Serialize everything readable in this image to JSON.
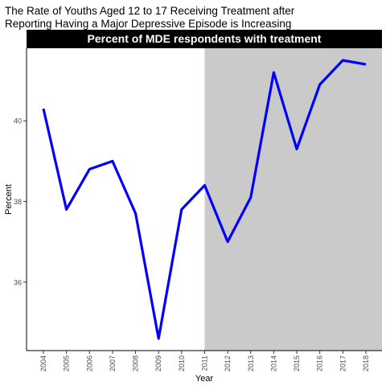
{
  "chart_data": {
    "type": "line",
    "title": "The Rate of Youths Aged 12 to 17 Receiving Treatment after Reporting Having a Major Depressive Episode is Increasing",
    "title_lines": [
      "The Rate of Youths Aged 12 to 17 Receiving Treatment after",
      "Reporting Having a Major Depressive Episode is Increasing"
    ],
    "panel_title": "Percent of MDE respondents with treatment",
    "xlabel": "Year",
    "ylabel": "Percent",
    "x": [
      "2004",
      "2005",
      "2006",
      "2007",
      "2008",
      "2009",
      "2010",
      "2011",
      "2012",
      "2013",
      "2014",
      "2015",
      "2016",
      "2017",
      "2018"
    ],
    "y": [
      40.3,
      37.8,
      38.8,
      39.0,
      37.7,
      34.6,
      37.8,
      38.4,
      37.0,
      38.1,
      41.2,
      39.3,
      40.9,
      41.5,
      41.4
    ],
    "y_ticks": [
      36,
      38,
      40
    ],
    "ylim": [
      34.3,
      41.8
    ],
    "shaded_region": {
      "from": "2011",
      "to": "2018",
      "color": "#cacaca"
    },
    "line_color": "#0000ff",
    "grid": false,
    "legend": "none"
  }
}
